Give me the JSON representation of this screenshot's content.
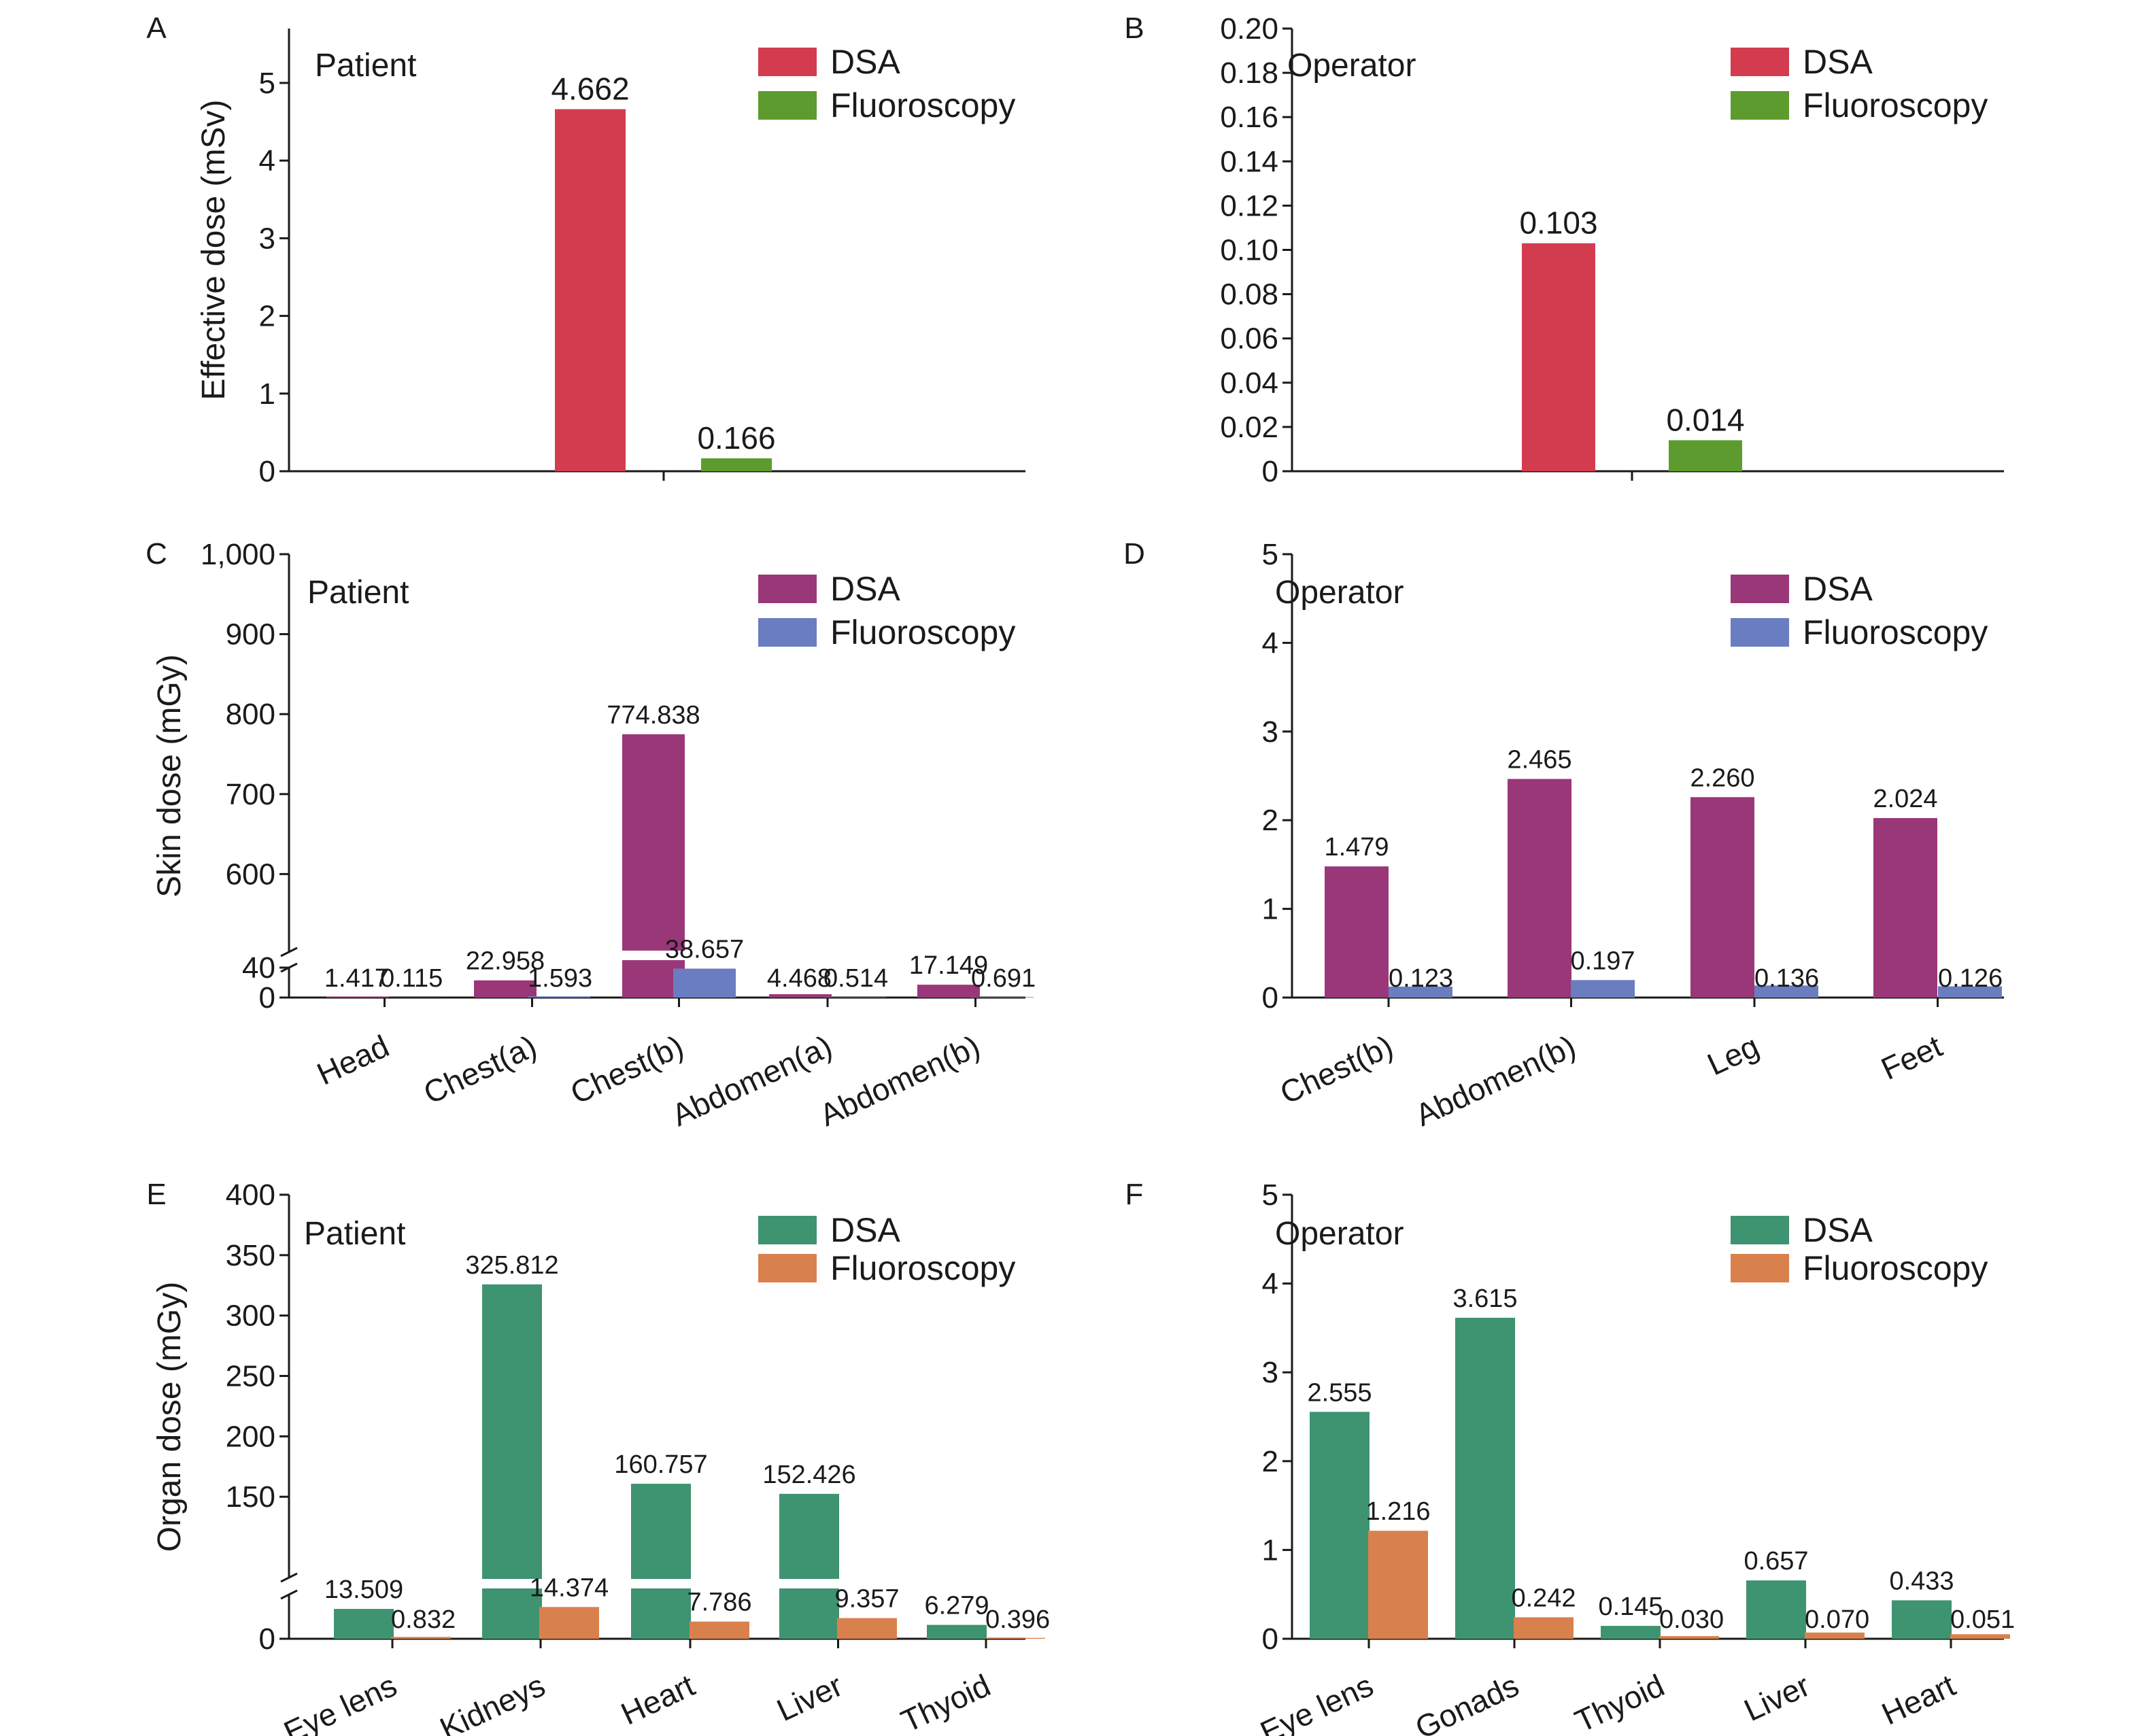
{
  "chart_data": [
    {
      "panel": "A",
      "type": "bar",
      "title": "Patient",
      "ylabel": "Effective dose (mSv)",
      "xlabel": "",
      "categories": [
        ""
      ],
      "series": [
        {
          "name": "DSA",
          "color": "#D23C4E",
          "values": [
            4.662
          ]
        },
        {
          "name": "Fluoroscopy",
          "color": "#5E9B2E",
          "values": [
            0.166
          ]
        }
      ],
      "data_labels": [
        [
          "4.662"
        ],
        [
          "0.166"
        ]
      ],
      "ylim": [
        0,
        5.7
      ],
      "yticks": [
        0,
        1,
        2,
        3,
        4,
        5
      ],
      "yticklabels": [
        "0",
        "1",
        "2",
        "3",
        "4",
        "5"
      ],
      "grid": false,
      "legend_position": "top-right"
    },
    {
      "panel": "B",
      "type": "bar",
      "title": "Operator",
      "ylabel": "",
      "xlabel": "",
      "categories": [
        ""
      ],
      "series": [
        {
          "name": "DSA",
          "color": "#D23C4E",
          "values": [
            0.103
          ]
        },
        {
          "name": "Fluoroscopy",
          "color": "#5E9B2E",
          "values": [
            0.014
          ]
        }
      ],
      "data_labels": [
        [
          "0.103"
        ],
        [
          "0.014"
        ]
      ],
      "ylim": [
        0,
        0.2
      ],
      "yticks": [
        0,
        0.02,
        0.04,
        0.06,
        0.08,
        0.1,
        0.12,
        0.14,
        0.16,
        0.18,
        0.2
      ],
      "yticklabels": [
        "0",
        "0.02",
        "0.04",
        "0.06",
        "0.08",
        "0.10",
        "0.12",
        "0.14",
        "0.16",
        "0.18",
        "0.20"
      ],
      "grid": false,
      "legend_position": "top-right"
    },
    {
      "panel": "C",
      "type": "bar",
      "title": "Patient",
      "ylabel": "Skin dose (mGy)",
      "xlabel": "",
      "categories": [
        "Head",
        "Chest(a)",
        "Chest(b)",
        "Abdomen(a)",
        "Abdomen(b)"
      ],
      "series": [
        {
          "name": "DSA",
          "color": "#9A3778",
          "values": [
            1.417,
            22.958,
            774.838,
            4.468,
            17.149
          ]
        },
        {
          "name": "Fluoroscopy",
          "color": "#6A7DC0",
          "values": [
            0.115,
            1.593,
            38.657,
            0.514,
            0.691
          ]
        }
      ],
      "data_labels": [
        [
          "1.417",
          "22.958",
          "774.838",
          "4.468",
          "17.149"
        ],
        [
          "0.115",
          "1.593",
          "38.657",
          "0.514",
          "0.691"
        ]
      ],
      "axis_break": {
        "lower": [
          0,
          40
        ],
        "upper": [
          500,
          1000
        ]
      },
      "yticks": [
        0,
        40,
        600,
        700,
        800,
        900,
        1000
      ],
      "yticklabels": [
        "0",
        "40",
        "600",
        "700",
        "800",
        "900",
        "1,000"
      ],
      "grid": false,
      "legend_position": "top-right"
    },
    {
      "panel": "D",
      "type": "bar",
      "title": "Operator",
      "ylabel": "",
      "xlabel": "",
      "categories": [
        "Chest(b)",
        "Abdomen(b)",
        "Leg",
        "Feet"
      ],
      "series": [
        {
          "name": "DSA",
          "color": "#9A3778",
          "values": [
            1.479,
            2.465,
            2.26,
            2.024
          ]
        },
        {
          "name": "Fluoroscopy",
          "color": "#6A7DC0",
          "values": [
            0.123,
            0.197,
            0.136,
            0.126
          ]
        }
      ],
      "data_labels": [
        [
          "1.479",
          "2.465",
          "2.260",
          "2.024"
        ],
        [
          "0.123",
          "0.197",
          "0.136",
          "0.126"
        ]
      ],
      "ylim": [
        0,
        5
      ],
      "yticks": [
        0,
        1,
        2,
        3,
        4,
        5
      ],
      "yticklabels": [
        "0",
        "1",
        "2",
        "3",
        "4",
        "5"
      ],
      "grid": false,
      "legend_position": "top-right"
    },
    {
      "panel": "E",
      "type": "bar",
      "title": "Patient",
      "ylabel": "Organ dose (mGy)",
      "xlabel": "",
      "categories": [
        "Eye lens",
        "Kidneys",
        "Heart",
        "Liver",
        "Thyoid"
      ],
      "series": [
        {
          "name": "DSA",
          "color": "#3E9371",
          "values": [
            13.509,
            325.812,
            160.757,
            152.426,
            6.279
          ]
        },
        {
          "name": "Fluoroscopy",
          "color": "#D9814D",
          "values": [
            0.832,
            14.374,
            7.786,
            9.357,
            0.396
          ]
        }
      ],
      "data_labels": [
        [
          "13.509",
          "325.812",
          "160.757",
          "152.426",
          "6.279"
        ],
        [
          "0.832",
          "14.374",
          "7.786",
          "9.357",
          "0.396"
        ]
      ],
      "axis_break": {
        "lower": [
          0,
          20
        ],
        "upper": [
          100,
          400
        ]
      },
      "yticks": [
        0,
        150,
        200,
        250,
        300,
        350,
        400
      ],
      "yticklabels": [
        "0",
        "150",
        "200",
        "250",
        "300",
        "350",
        "400"
      ],
      "grid": false,
      "legend_position": "top-right"
    },
    {
      "panel": "F",
      "type": "bar",
      "title": "Operator",
      "ylabel": "",
      "xlabel": "",
      "categories": [
        "Eye lens",
        "Gonads",
        "Thyoid",
        "Liver",
        "Heart"
      ],
      "series": [
        {
          "name": "DSA",
          "color": "#3E9371",
          "values": [
            2.555,
            3.615,
            0.145,
            0.657,
            0.433
          ]
        },
        {
          "name": "Fluoroscopy",
          "color": "#D9814D",
          "values": [
            1.216,
            0.242,
            0.03,
            0.07,
            0.051
          ]
        }
      ],
      "data_labels": [
        [
          "2.555",
          "3.615",
          "0.145",
          "0.657",
          "0.433"
        ],
        [
          "1.216",
          "0.242",
          "0.030",
          "0.070",
          "0.051"
        ]
      ],
      "ylim": [
        0,
        5
      ],
      "yticks": [
        0,
        1,
        2,
        3,
        4,
        5
      ],
      "yticklabels": [
        "0",
        "1",
        "2",
        "3",
        "4",
        "5"
      ],
      "grid": false,
      "legend_position": "top-right"
    }
  ]
}
